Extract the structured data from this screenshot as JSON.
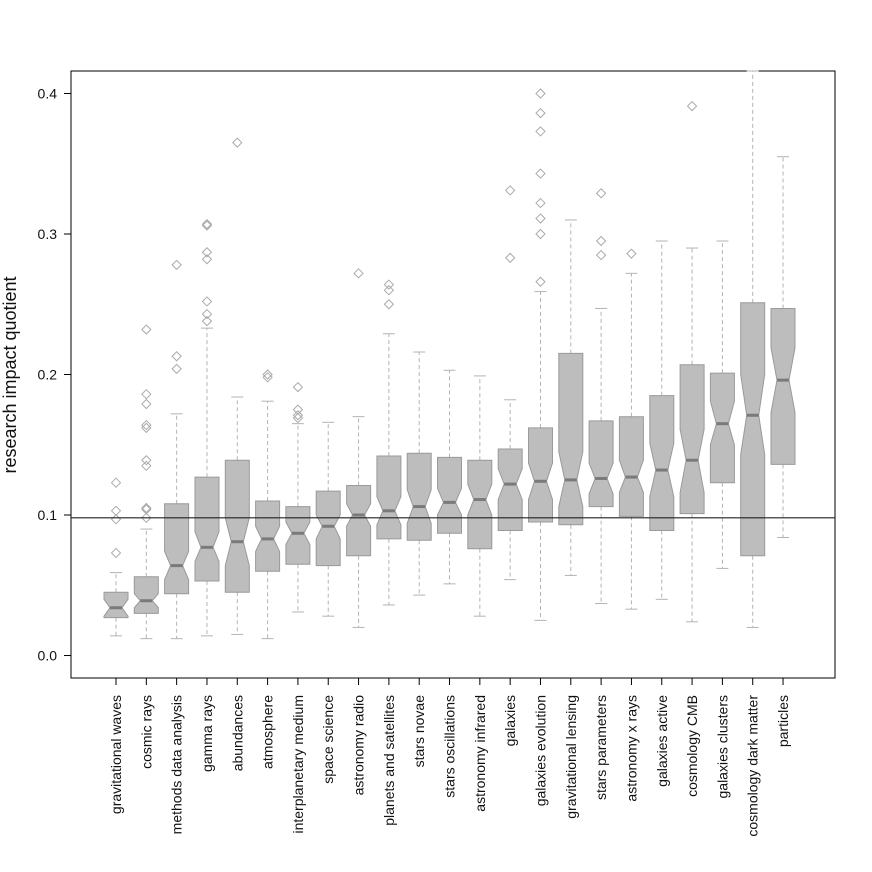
{
  "chart_data": {
    "type": "boxplot",
    "title": "",
    "xlabel": "",
    "ylabel": "research impact quotient",
    "ylim": [
      -0.016,
      0.416
    ],
    "yticks": [
      0.0,
      0.1,
      0.2,
      0.3,
      0.4
    ],
    "ytick_labels": [
      "0.0",
      "0.1",
      "0.2",
      "0.3",
      "0.4"
    ],
    "notched": true,
    "reference_line": 0.098,
    "colors": {
      "box_fill": "#bdbdbd",
      "box_stroke": "#9a9a9a",
      "median": "#7a7a7a",
      "whisker": "#b3b3b3",
      "outlier": "#aaaaaa",
      "reference": "#222222",
      "axis": "#000000"
    },
    "categories": [
      "gravitational waves",
      "cosmic rays",
      "methods data analysis",
      "gamma rays",
      "abundances",
      "atmosphere",
      "interplanetary medium",
      "space science",
      "astronomy radio",
      "planets and satellites",
      "stars novae",
      "stars oscillations",
      "astronomy infrared",
      "galaxies",
      "galaxies evolution",
      "gravitational lensing",
      "stars parameters",
      "astronomy x rays",
      "galaxies active",
      "cosmology CMB",
      "galaxies clusters",
      "cosmology dark matter",
      "particles"
    ],
    "boxes": [
      {
        "whislo": 0.014,
        "q1": 0.027,
        "notch_lo": 0.028,
        "med": 0.034,
        "notch_hi": 0.04,
        "q3": 0.045,
        "whishi": 0.059,
        "fliers": [
          0.073,
          0.097,
          0.103,
          0.123
        ]
      },
      {
        "whislo": 0.012,
        "q1": 0.03,
        "notch_lo": 0.034,
        "med": 0.039,
        "notch_hi": 0.044,
        "q3": 0.056,
        "whishi": 0.09,
        "fliers": [
          0.098,
          0.104,
          0.105,
          0.135,
          0.139,
          0.162,
          0.164,
          0.179,
          0.186,
          0.232
        ]
      },
      {
        "whislo": 0.012,
        "q1": 0.044,
        "notch_lo": 0.054,
        "med": 0.064,
        "notch_hi": 0.074,
        "q3": 0.108,
        "whishi": 0.172,
        "fliers": [
          0.204,
          0.213,
          0.278
        ]
      },
      {
        "whislo": 0.014,
        "q1": 0.053,
        "notch_lo": 0.067,
        "med": 0.077,
        "notch_hi": 0.088,
        "q3": 0.127,
        "whishi": 0.233,
        "fliers": [
          0.238,
          0.243,
          0.252,
          0.282,
          0.287,
          0.306,
          0.307
        ]
      },
      {
        "whislo": 0.015,
        "q1": 0.045,
        "notch_lo": 0.064,
        "med": 0.081,
        "notch_hi": 0.098,
        "q3": 0.139,
        "whishi": 0.184,
        "fliers": [
          0.365
        ]
      },
      {
        "whislo": 0.012,
        "q1": 0.06,
        "notch_lo": 0.074,
        "med": 0.083,
        "notch_hi": 0.092,
        "q3": 0.11,
        "whishi": 0.181,
        "fliers": [
          0.198,
          0.2
        ]
      },
      {
        "whislo": 0.031,
        "q1": 0.065,
        "notch_lo": 0.079,
        "med": 0.087,
        "notch_hi": 0.095,
        "q3": 0.106,
        "whishi": 0.165,
        "fliers": [
          0.169,
          0.171,
          0.175,
          0.191
        ]
      },
      {
        "whislo": 0.028,
        "q1": 0.064,
        "notch_lo": 0.083,
        "med": 0.092,
        "notch_hi": 0.1,
        "q3": 0.117,
        "whishi": 0.166,
        "fliers": []
      },
      {
        "whislo": 0.02,
        "q1": 0.071,
        "notch_lo": 0.092,
        "med": 0.1,
        "notch_hi": 0.108,
        "q3": 0.121,
        "whishi": 0.17,
        "fliers": [
          0.272
        ]
      },
      {
        "whislo": 0.036,
        "q1": 0.083,
        "notch_lo": 0.093,
        "med": 0.103,
        "notch_hi": 0.113,
        "q3": 0.142,
        "whishi": 0.229,
        "fliers": [
          0.25,
          0.26,
          0.264
        ]
      },
      {
        "whislo": 0.043,
        "q1": 0.082,
        "notch_lo": 0.094,
        "med": 0.106,
        "notch_hi": 0.118,
        "q3": 0.144,
        "whishi": 0.216,
        "fliers": []
      },
      {
        "whislo": 0.051,
        "q1": 0.087,
        "notch_lo": 0.1,
        "med": 0.109,
        "notch_hi": 0.119,
        "q3": 0.141,
        "whishi": 0.203,
        "fliers": []
      },
      {
        "whislo": 0.028,
        "q1": 0.076,
        "notch_lo": 0.1,
        "med": 0.111,
        "notch_hi": 0.122,
        "q3": 0.139,
        "whishi": 0.199,
        "fliers": []
      },
      {
        "whislo": 0.054,
        "q1": 0.089,
        "notch_lo": 0.111,
        "med": 0.122,
        "notch_hi": 0.133,
        "q3": 0.147,
        "whishi": 0.182,
        "fliers": [
          0.283,
          0.331
        ]
      },
      {
        "whislo": 0.025,
        "q1": 0.095,
        "notch_lo": 0.111,
        "med": 0.124,
        "notch_hi": 0.137,
        "q3": 0.162,
        "whishi": 0.259,
        "fliers": [
          0.266,
          0.3,
          0.311,
          0.322,
          0.343,
          0.373,
          0.386,
          0.4
        ]
      },
      {
        "whislo": 0.057,
        "q1": 0.093,
        "notch_lo": 0.106,
        "med": 0.125,
        "notch_hi": 0.145,
        "q3": 0.215,
        "whishi": 0.31,
        "fliers": []
      },
      {
        "whislo": 0.037,
        "q1": 0.106,
        "notch_lo": 0.115,
        "med": 0.126,
        "notch_hi": 0.137,
        "q3": 0.167,
        "whishi": 0.247,
        "fliers": [
          0.285,
          0.295,
          0.329
        ]
      },
      {
        "whislo": 0.033,
        "q1": 0.099,
        "notch_lo": 0.116,
        "med": 0.127,
        "notch_hi": 0.139,
        "q3": 0.17,
        "whishi": 0.272,
        "fliers": [
          0.286
        ]
      },
      {
        "whislo": 0.04,
        "q1": 0.089,
        "notch_lo": 0.113,
        "med": 0.132,
        "notch_hi": 0.151,
        "q3": 0.185,
        "whishi": 0.295,
        "fliers": []
      },
      {
        "whislo": 0.024,
        "q1": 0.101,
        "notch_lo": 0.116,
        "med": 0.139,
        "notch_hi": 0.161,
        "q3": 0.207,
        "whishi": 0.29,
        "fliers": [
          0.391
        ]
      },
      {
        "whislo": 0.062,
        "q1": 0.123,
        "notch_lo": 0.15,
        "med": 0.165,
        "notch_hi": 0.181,
        "q3": 0.201,
        "whishi": 0.295,
        "fliers": []
      },
      {
        "whislo": 0.02,
        "q1": 0.071,
        "notch_lo": 0.143,
        "med": 0.171,
        "notch_hi": 0.2,
        "q3": 0.251,
        "whishi": 0.416,
        "fliers": []
      },
      {
        "whislo": 0.084,
        "q1": 0.136,
        "notch_lo": 0.173,
        "med": 0.196,
        "notch_hi": 0.219,
        "q3": 0.247,
        "whishi": 0.355,
        "fliers": []
      }
    ]
  }
}
